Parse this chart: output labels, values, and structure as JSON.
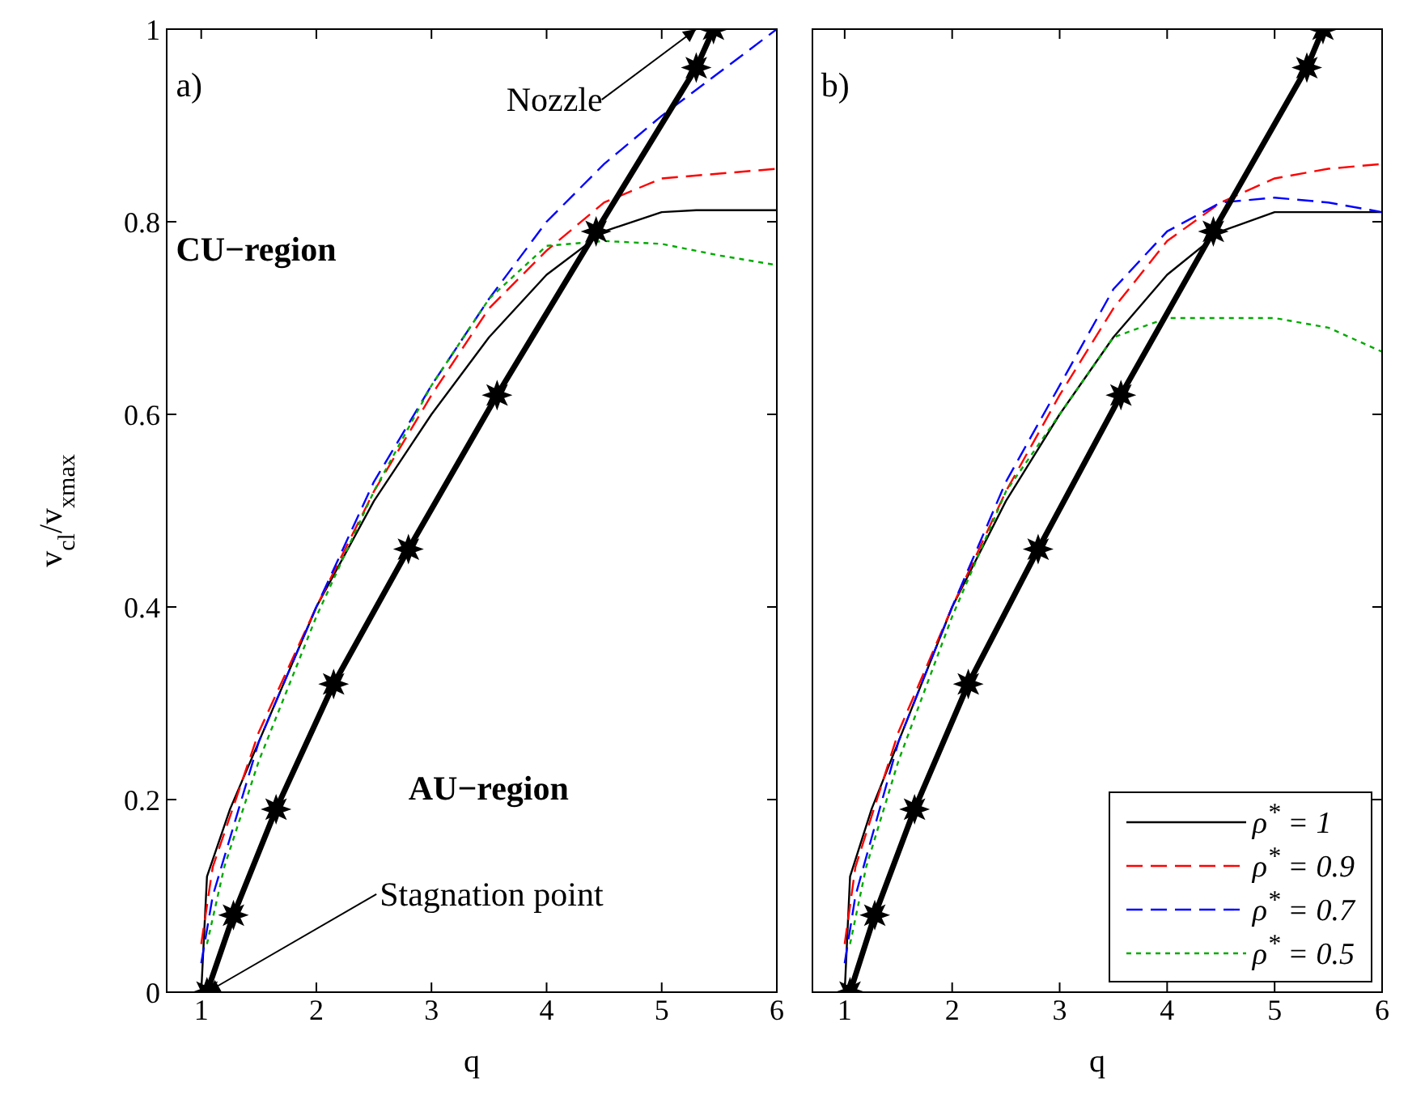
{
  "chart_data": [
    {
      "type": "line",
      "ylabel": "v$_{cl}$/v$_{xmax}$",
      "xlabel": "q",
      "xlim": [
        0.7,
        6
      ],
      "xticks": [
        1,
        2,
        3,
        4,
        5,
        6
      ],
      "ylim": [
        0,
        1
      ],
      "yticks": [
        0,
        0.2,
        0.4,
        0.6,
        0.8,
        1
      ],
      "legend": false,
      "annotations": [
        "a)",
        {
          "text": "Nozzle",
          "x": 5.3,
          "y": 1
        },
        "CU−region",
        "AU−region",
        {
          "text": "Stagnation point",
          "x": 1.05,
          "y": 0
        }
      ],
      "series": [
        {
          "color": "#000000",
          "line_style": "solid",
          "marker": "none",
          "x": [
            1,
            1.05,
            1.25,
            1.5,
            2,
            2.5,
            3,
            3.5,
            4,
            4.5,
            5,
            5.3,
            6
          ],
          "values": [
            0,
            0.12,
            0.19,
            0.26,
            0.4,
            0.51,
            0.6,
            0.68,
            0.745,
            0.79,
            0.81,
            0.812,
            0.812
          ]
        },
        {
          "color": "#ff0000",
          "line_style": "dashed",
          "marker": "none",
          "x": [
            1,
            1.1,
            1.3,
            1.5,
            2,
            2.5,
            3,
            3.5,
            4,
            4.5,
            5,
            5.5,
            6
          ],
          "values": [
            0.05,
            0.13,
            0.2,
            0.27,
            0.4,
            0.52,
            0.62,
            0.71,
            0.77,
            0.82,
            0.845,
            0.85,
            0.855
          ]
        },
        {
          "color": "#0000ff",
          "line_style": "dashed",
          "marker": "none",
          "x": [
            1,
            1.1,
            1.3,
            1.5,
            2,
            2.5,
            3,
            3.5,
            4,
            4.5,
            5,
            5.5,
            6
          ],
          "values": [
            0.03,
            0.1,
            0.18,
            0.26,
            0.4,
            0.53,
            0.63,
            0.72,
            0.8,
            0.86,
            0.91,
            0.955,
            1
          ]
        },
        {
          "color": "#00aa00",
          "line_style": "dotted",
          "marker": "none",
          "x": [
            1.05,
            1.2,
            1.5,
            2,
            2.5,
            3,
            3.5,
            4,
            4.5,
            5,
            5.5,
            6
          ],
          "values": [
            0.05,
            0.13,
            0.24,
            0.39,
            0.52,
            0.63,
            0.72,
            0.775,
            0.78,
            0.777,
            0.765,
            0.755
          ]
        },
        {
          "color": "#000000",
          "line_style": "solid",
          "marker": "star",
          "x": [
            1.05,
            1.28,
            1.65,
            2.15,
            2.8,
            3.57,
            4.43,
            5.3,
            5.45
          ],
          "values": [
            0,
            0.08,
            0.19,
            0.32,
            0.46,
            0.62,
            0.79,
            0.96,
            1
          ]
        }
      ]
    },
    {
      "type": "line",
      "xlabel": "q",
      "xlim": [
        0.7,
        6
      ],
      "xticks": [
        1,
        2,
        3,
        4,
        5,
        6
      ],
      "ylim": [
        0,
        1
      ],
      "yticks": [
        0,
        0.2,
        0.4,
        0.6,
        0.8,
        1
      ],
      "tick_labels": "x",
      "legend": "bottom right",
      "annotations": [
        "b)"
      ],
      "series": [
        {
          "name": "ρ$^{*}$ = 1",
          "color": "#000000",
          "line_style": "solid",
          "marker": "none",
          "x": [
            1,
            1.05,
            1.25,
            1.5,
            2,
            2.5,
            3,
            3.5,
            4,
            4.5,
            5,
            5.3,
            6
          ],
          "values": [
            0,
            0.12,
            0.19,
            0.26,
            0.4,
            0.51,
            0.6,
            0.68,
            0.745,
            0.79,
            0.81,
            0.81,
            0.81
          ]
        },
        {
          "name": "ρ$^{*}$ = 0.9",
          "color": "#ff0000",
          "line_style": "dashed",
          "marker": "none",
          "x": [
            1,
            1.1,
            1.3,
            1.5,
            2,
            2.5,
            3,
            3.5,
            4,
            4.5,
            5,
            5.5,
            6
          ],
          "values": [
            0.05,
            0.13,
            0.2,
            0.27,
            0.4,
            0.52,
            0.62,
            0.71,
            0.78,
            0.82,
            0.845,
            0.855,
            0.86
          ]
        },
        {
          "name": "ρ$^{*}$ = 0.7",
          "color": "#0000ff",
          "line_style": "dashed",
          "marker": "none",
          "x": [
            1,
            1.1,
            1.3,
            1.5,
            2,
            2.5,
            3,
            3.5,
            4,
            4.5,
            5,
            5.5,
            6
          ],
          "values": [
            0.03,
            0.1,
            0.18,
            0.26,
            0.4,
            0.53,
            0.63,
            0.73,
            0.79,
            0.82,
            0.825,
            0.82,
            0.81
          ]
        },
        {
          "name": "ρ$^{*}$ = 0.5",
          "color": "#00aa00",
          "line_style": "dotted",
          "marker": "none",
          "x": [
            1.05,
            1.2,
            1.5,
            2,
            2.5,
            3,
            3.5,
            4,
            4.5,
            5,
            5.5,
            6
          ],
          "values": [
            0.05,
            0.13,
            0.24,
            0.39,
            0.52,
            0.6,
            0.68,
            0.7,
            0.7,
            0.7,
            0.69,
            0.665
          ]
        },
        {
          "color": "#000000",
          "line_style": "solid",
          "marker": "star",
          "x": [
            1.05,
            1.28,
            1.65,
            2.15,
            2.8,
            3.57,
            4.43,
            5.3,
            5.45
          ],
          "values": [
            0,
            0.08,
            0.19,
            0.32,
            0.46,
            0.62,
            0.79,
            0.96,
            1
          ]
        }
      ]
    }
  ]
}
